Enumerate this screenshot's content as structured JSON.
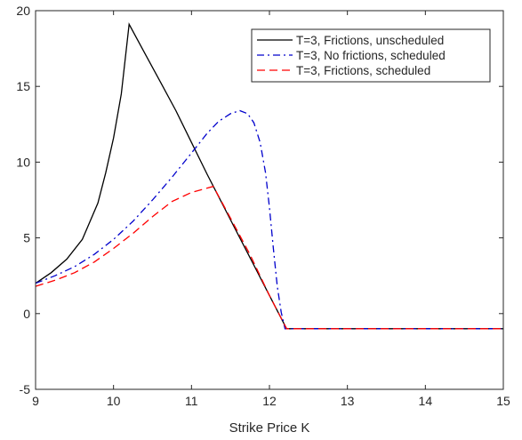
{
  "chart_data": {
    "type": "line",
    "title": "",
    "xlabel": "Strike Price K",
    "ylabel": "",
    "xlim": [
      9,
      15
    ],
    "ylim": [
      -5,
      20
    ],
    "xticks": [
      "9",
      "10",
      "11",
      "12",
      "13",
      "14",
      "15"
    ],
    "yticks": [
      "-5",
      "0",
      "5",
      "10",
      "15",
      "20"
    ],
    "grid": false,
    "legend_position": "top-right",
    "series": [
      {
        "name": "T=3, Frictions, unscheduled",
        "color": "#000000",
        "style": "solid",
        "x": [
          9.0,
          9.2,
          9.4,
          9.6,
          9.8,
          9.9,
          10.0,
          10.1,
          10.2,
          10.4,
          10.6,
          10.8,
          11.0,
          11.2,
          11.4,
          11.6,
          11.8,
          12.0,
          12.22,
          12.5,
          13.0,
          13.5,
          14.0,
          14.5,
          15.0
        ],
        "y": [
          2.0,
          2.7,
          3.6,
          4.9,
          7.3,
          9.3,
          11.6,
          14.5,
          19.1,
          17.2,
          15.3,
          13.4,
          11.3,
          9.2,
          7.2,
          5.2,
          3.2,
          1.2,
          -1.0,
          -1.0,
          -1.0,
          -1.0,
          -1.0,
          -1.0,
          -1.0
        ]
      },
      {
        "name": "T=3, No frictions, scheduled",
        "color": "#0000cc",
        "style": "dashdot",
        "x": [
          9.0,
          9.25,
          9.5,
          9.75,
          10.0,
          10.25,
          10.5,
          10.75,
          11.0,
          11.2,
          11.35,
          11.5,
          11.62,
          11.72,
          11.8,
          11.88,
          11.95,
          12.0,
          12.05,
          12.1,
          12.15,
          12.2,
          12.5,
          13.0,
          13.5,
          14.0,
          14.5,
          15.0
        ],
        "y": [
          2.0,
          2.5,
          3.1,
          3.9,
          4.9,
          6.1,
          7.5,
          9.0,
          10.6,
          11.9,
          12.7,
          13.2,
          13.4,
          13.2,
          12.6,
          11.3,
          9.3,
          7.0,
          4.3,
          1.8,
          0.1,
          -1.0,
          -1.0,
          -1.0,
          -1.0,
          -1.0,
          -1.0,
          -1.0
        ]
      },
      {
        "name": "T=3, Frictions, scheduled",
        "color": "#ff0000",
        "style": "dashed",
        "x": [
          9.0,
          9.25,
          9.5,
          9.75,
          10.0,
          10.25,
          10.5,
          10.75,
          11.0,
          11.28,
          11.5,
          11.75,
          12.0,
          12.22,
          12.5,
          13.0,
          13.5,
          14.0,
          14.5,
          15.0
        ],
        "y": [
          1.8,
          2.2,
          2.7,
          3.4,
          4.3,
          5.3,
          6.4,
          7.4,
          8.0,
          8.4,
          6.3,
          3.9,
          1.2,
          -1.0,
          -1.0,
          -1.0,
          -1.0,
          -1.0,
          -1.0,
          -1.0
        ]
      }
    ]
  }
}
